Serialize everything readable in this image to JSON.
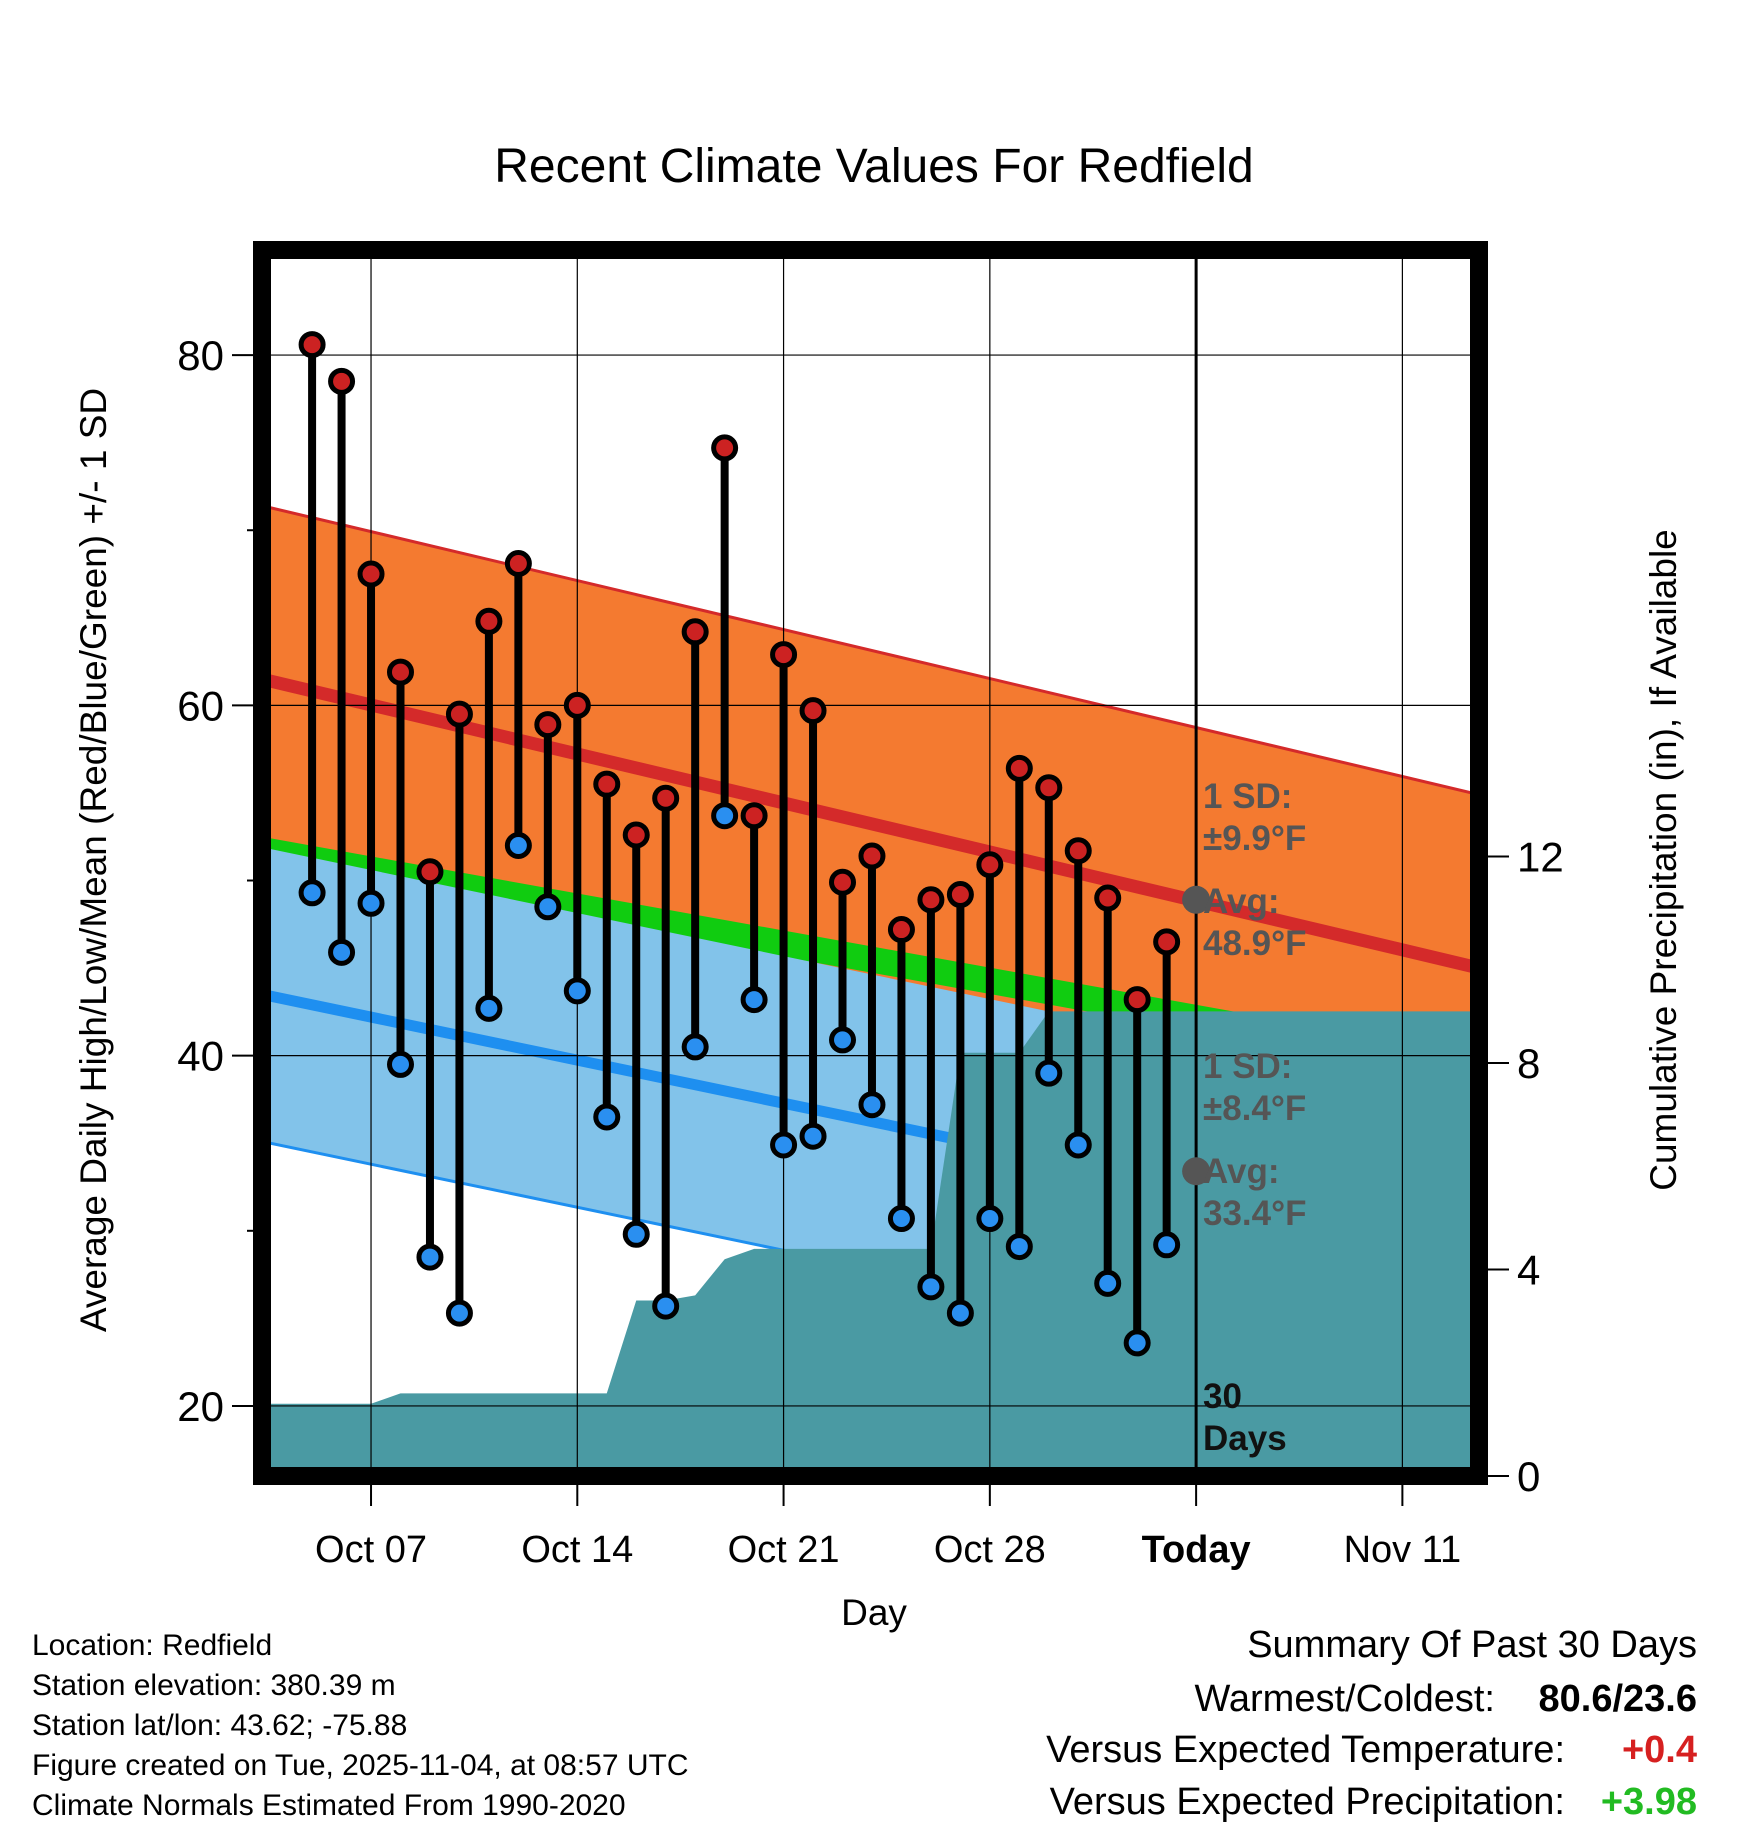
{
  "chart_data": {
    "type": "line",
    "title": "Recent Climate Values For Redfield",
    "xlabel": "Day",
    "ylabel_left": "Average Daily High/Low/Mean (Red/Blue/Green) +/- 1 SD",
    "ylabel_right": "Cumulative Precipitation (in), If Available",
    "x_ticks": [
      "Oct 07",
      "Oct 14",
      "Oct 21",
      "Oct 28",
      "Today",
      "Nov 11"
    ],
    "x_tick_days": [
      7,
      14,
      21,
      28,
      35,
      42
    ],
    "xlim": [
      3.3,
      44.6
    ],
    "ylim_left": [
      16,
      86
    ],
    "ylim_right": [
      0,
      23.75
    ],
    "y_ticks_left": [
      20,
      40,
      60,
      80
    ],
    "y_ticks_right": [
      0,
      4,
      8,
      12
    ],
    "days": [
      5,
      6,
      7,
      8,
      9,
      10,
      11,
      12,
      13,
      14,
      15,
      16,
      17,
      18,
      19,
      20,
      21,
      22,
      23,
      24,
      25,
      26,
      27,
      28,
      29,
      30,
      31,
      32,
      33,
      34
    ],
    "highs": [
      80.6,
      78.5,
      67.5,
      61.9,
      50.5,
      59.5,
      64.8,
      68.1,
      58.9,
      60.0,
      55.5,
      52.6,
      54.7,
      64.2,
      74.7,
      53.7,
      62.9,
      59.7,
      49.9,
      51.4,
      47.2,
      48.9,
      49.2,
      50.9,
      56.4,
      55.3,
      51.7,
      49.0,
      43.2,
      46.5
    ],
    "lows": [
      49.3,
      45.9,
      48.7,
      39.5,
      28.5,
      25.3,
      42.7,
      52.0,
      48.5,
      43.7,
      36.5,
      29.8,
      25.7,
      40.5,
      53.7,
      43.2,
      34.9,
      35.4,
      40.9,
      37.2,
      30.7,
      26.8,
      25.3,
      30.7,
      29.1,
      39.0,
      34.9,
      27.0,
      23.6,
      29.2
    ],
    "normals": {
      "high_mean": {
        "start": 61.5,
        "end": 45.0
      },
      "high_sd": 9.9,
      "low_mean": {
        "start": 43.5,
        "end": 29.0
      },
      "low_sd": 8.4,
      "mean_band": {
        "start": 52.5,
        "end": 40.0
      }
    },
    "precip_cumulative": [
      0,
      1.4,
      1.4,
      1.4,
      1.4,
      1.4,
      1.4,
      1.6,
      1.6,
      1.6,
      1.6,
      1.6,
      1.6,
      1.6,
      1.6,
      3.4,
      3.4,
      3.5,
      4.2,
      4.4,
      4.4,
      4.4,
      4.4,
      4.4,
      4.4,
      4.4,
      8.2,
      8.2,
      8.2,
      9.0,
      9.0,
      9.0,
      9.0,
      9.0,
      9.0
    ],
    "today_day": 35,
    "today_high_avg": 48.9,
    "today_low_avg": 33.4,
    "annotations": {
      "high_sd_label": "1 SD:",
      "high_sd_value": "±9.9°F",
      "high_avg_label": "Avg:",
      "high_avg_value": "48.9°F",
      "low_sd_label": "1 SD:",
      "low_sd_value": "±8.4°F",
      "low_avg_label": "Avg:",
      "low_avg_value": "33.4°F",
      "days_count": "30",
      "days_label": "Days"
    },
    "colors": {
      "high_band": "#f47a30",
      "high_line": "#d42a2a",
      "low_band": "#82c3ea",
      "low_line": "#1e8ff0",
      "mean_band": "#10cc10",
      "precip": "#4a9aa3",
      "high_dot": "#cc2222",
      "low_dot": "#2a8ff0",
      "annotation": "#555555"
    }
  },
  "footer": {
    "location": "Location: Redfield",
    "elevation": "Station elevation: 380.39 m",
    "latlon": "Station lat/lon: 43.62; -75.88",
    "created": "Figure created on Tue, 2025-11-04, at 08:57 UTC",
    "normals": "Climate Normals Estimated From 1990-2020"
  },
  "summary": {
    "title": "Summary Of Past 30 Days",
    "warmest_label": "Warmest/Coldest:",
    "warmest_value": "80.6/23.6",
    "temp_label": "Versus Expected Temperature:",
    "temp_value": "+0.4",
    "precip_label": "Versus Expected Precipitation:",
    "precip_value": "+3.98",
    "temp_color": "#d62020",
    "precip_color": "#22bb22"
  }
}
